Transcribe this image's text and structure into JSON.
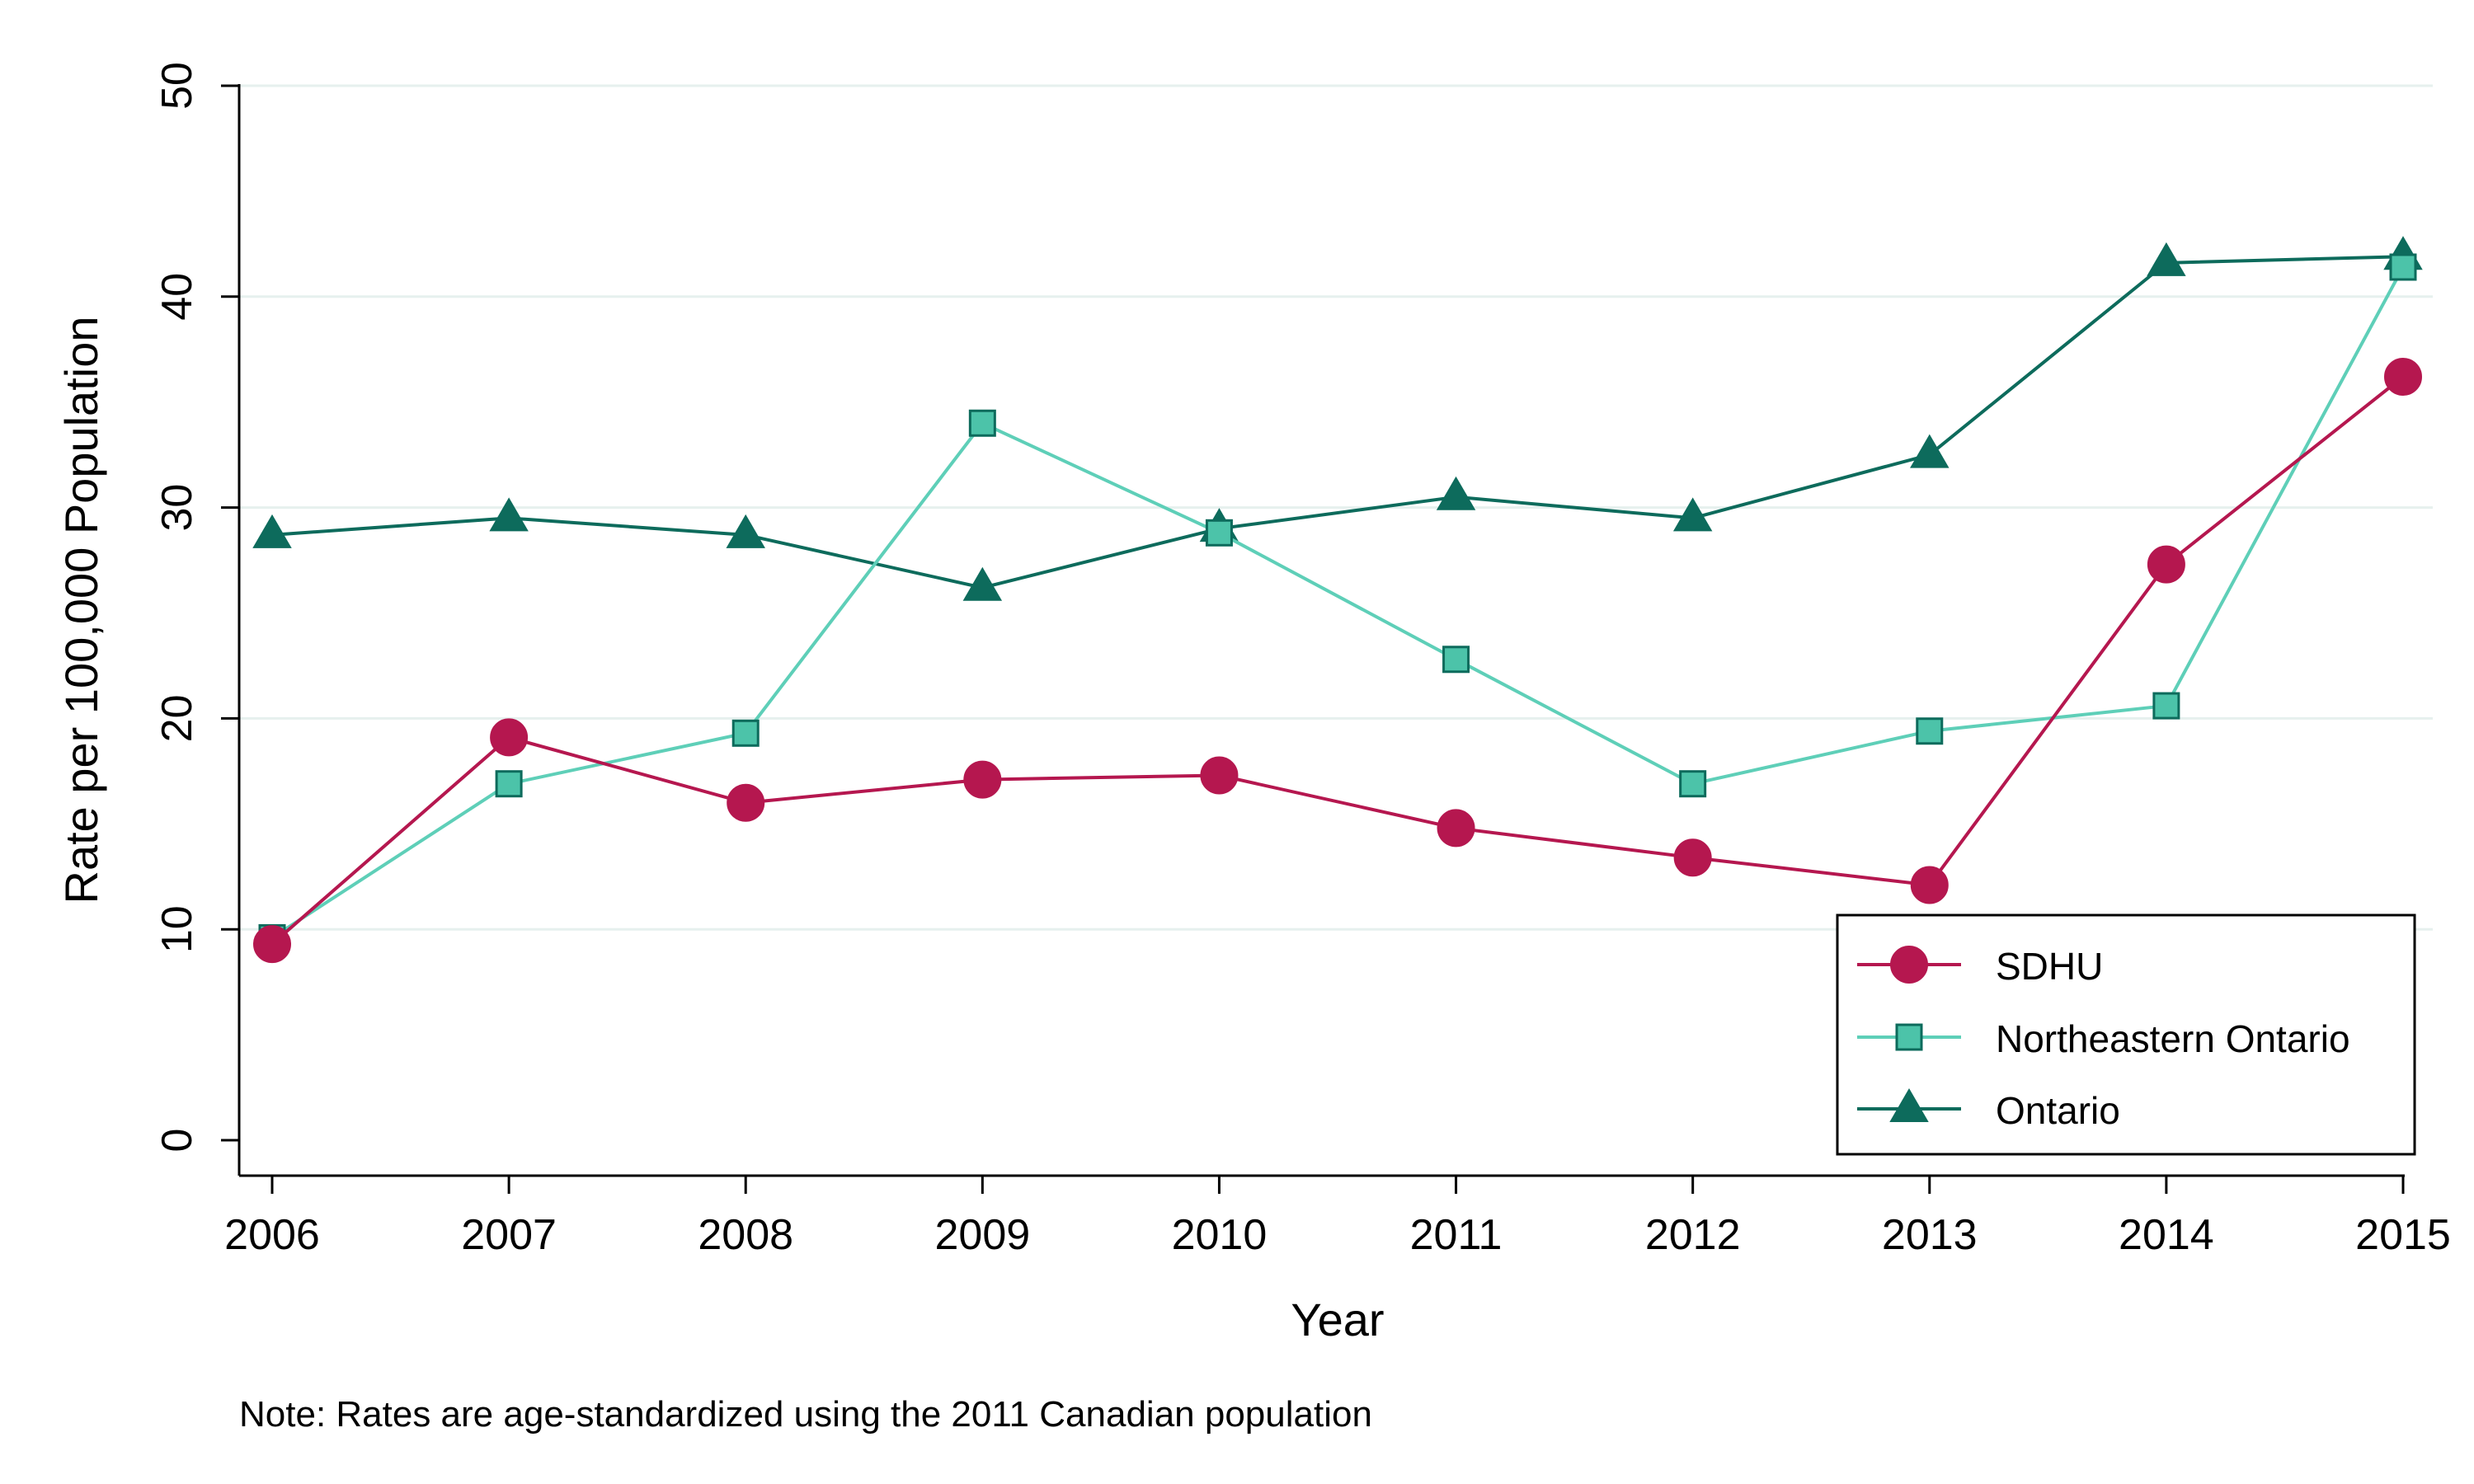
{
  "chart_data": {
    "type": "line",
    "x": [
      2006,
      2007,
      2008,
      2009,
      2010,
      2011,
      2012,
      2013,
      2014,
      2015
    ],
    "xlabel": "Year",
    "ylabel": "Rate per 100,000 Population",
    "ylim": [
      0,
      50
    ],
    "yticks": [
      0,
      10,
      20,
      30,
      40,
      50
    ],
    "grid": "horizontal",
    "legend_position": "bottom-right",
    "note": "Note: Rates are age-standardized using the 2011 Canadian population",
    "series": [
      {
        "name": "SDHU",
        "marker": "circle",
        "color": "#b5174f",
        "fill": "#b5174f",
        "values": [
          9.3,
          19.1,
          16.0,
          17.1,
          17.3,
          14.8,
          13.4,
          12.1,
          27.3,
          36.2
        ]
      },
      {
        "name": "Northeastern Ontario",
        "marker": "square",
        "color": "#5ecfb8",
        "fill": "#4cc3a9",
        "values": [
          9.6,
          16.9,
          19.3,
          34.0,
          28.8,
          22.8,
          16.9,
          19.4,
          20.6,
          41.4
        ]
      },
      {
        "name": "Ontario",
        "marker": "triangle",
        "color": "#0d6b5c",
        "fill": "#0d6b5c",
        "values": [
          28.7,
          29.5,
          28.7,
          26.2,
          29.0,
          30.5,
          29.5,
          32.5,
          41.6,
          41.9
        ]
      }
    ]
  }
}
